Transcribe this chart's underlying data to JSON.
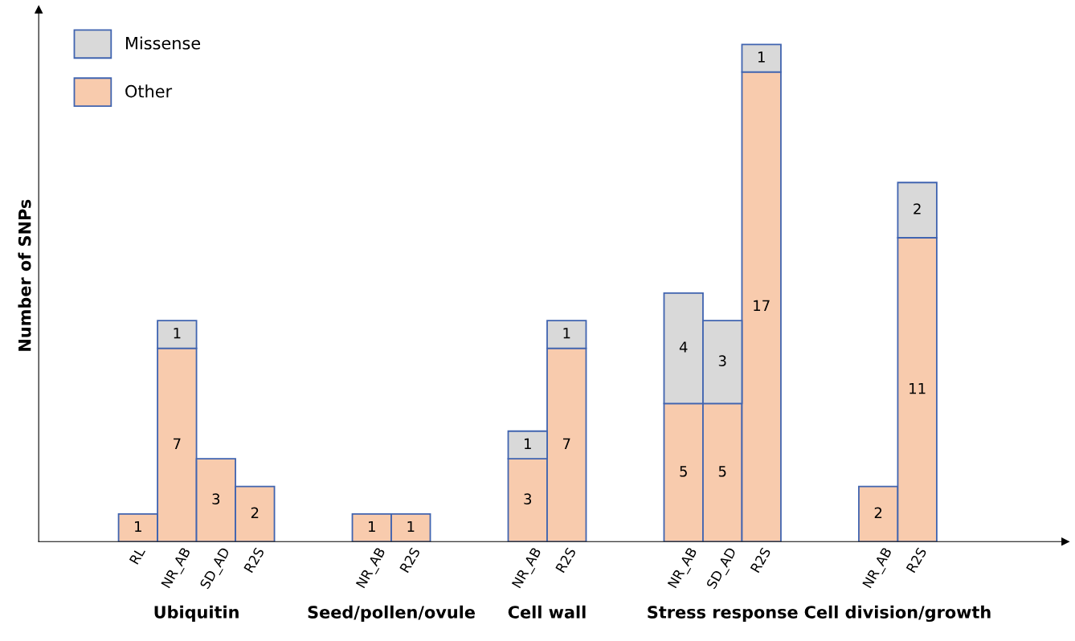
{
  "chart_data": {
    "type": "bar",
    "stacked": true,
    "ylabel": "Number of SNPs",
    "categories": [
      null,
      null,
      "RL",
      "NR_AB",
      "SD_AD",
      "R2S",
      null,
      null,
      "NR_AB",
      "R2S",
      null,
      null,
      "NR_AB",
      "R2S",
      null,
      null,
      "NR_AB",
      "SD_AD",
      "R2S",
      null,
      null,
      "NR_AB",
      "R2S"
    ],
    "series": [
      {
        "name": "Other",
        "color": "#f8cbad",
        "values": [
          null,
          null,
          1,
          7,
          3,
          2,
          null,
          null,
          1,
          1,
          null,
          null,
          3,
          7,
          null,
          null,
          5,
          5,
          17,
          null,
          null,
          2,
          11
        ]
      },
      {
        "name": "Missense",
        "color": "#d9d9d9",
        "values": [
          null,
          null,
          null,
          1,
          null,
          null,
          null,
          null,
          null,
          null,
          null,
          null,
          1,
          1,
          null,
          null,
          4,
          3,
          1,
          null,
          null,
          null,
          2
        ]
      }
    ],
    "annotations": [
      "Ubiquitin",
      "Seed/pollen/ovule",
      "Cell wall",
      "Stress response",
      "Cell division/growth"
    ],
    "data_labels": true,
    "legend": "top left",
    "grid": false
  }
}
